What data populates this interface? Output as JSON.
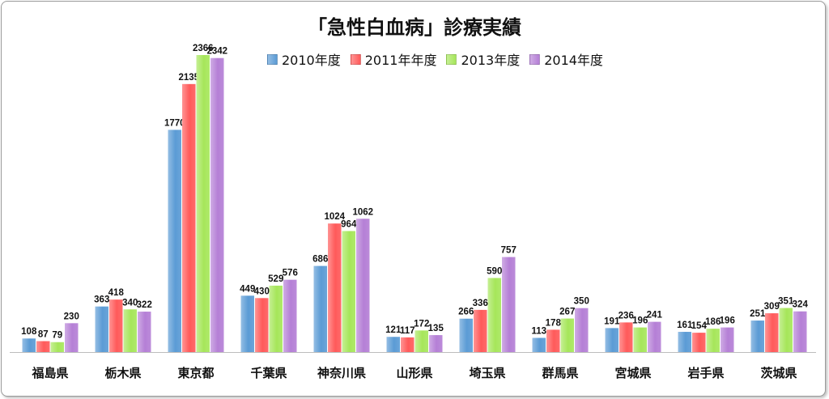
{
  "chart_data": {
    "type": "bar",
    "title": "「急性白血病」診療実績",
    "xlabel": "",
    "ylabel": "",
    "ylim": [
      0,
      2366
    ],
    "grid": false,
    "legend_position": "top",
    "categories": [
      "福島県",
      "栃木県",
      "東京都",
      "千葉県",
      "神奈川県",
      "山形県",
      "埼玉県",
      "群馬県",
      "宮城県",
      "岩手県",
      "茨城県"
    ],
    "series": [
      {
        "name": "2010年度",
        "color": "#5b9bd5",
        "values": [
          108,
          363,
          1770,
          449,
          686,
          121,
          266,
          113,
          191,
          161,
          251
        ]
      },
      {
        "name": "2011年年度",
        "color": "#ff5a5a",
        "values": [
          87,
          418,
          2135,
          430,
          1024,
          117,
          336,
          178,
          236,
          154,
          309
        ]
      },
      {
        "name": "2013年度",
        "color": "#a6e65a",
        "values": [
          79,
          340,
          2366,
          529,
          964,
          172,
          590,
          267,
          196,
          186,
          351
        ]
      },
      {
        "name": "2014年度",
        "color": "#b57fd6",
        "values": [
          230,
          322,
          2342,
          576,
          1062,
          135,
          757,
          350,
          241,
          196,
          324
        ]
      }
    ]
  }
}
